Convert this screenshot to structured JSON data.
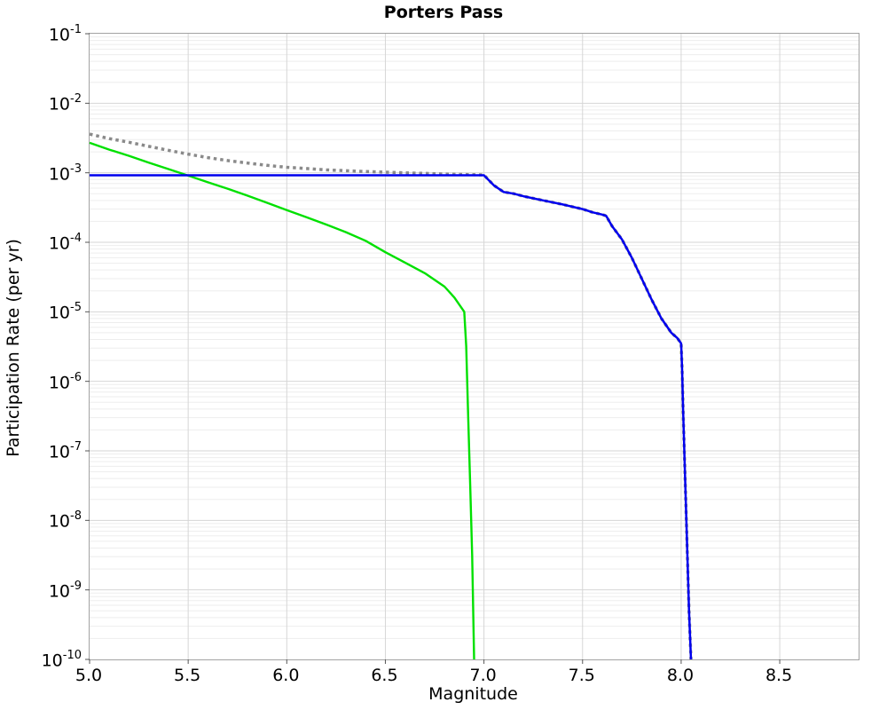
{
  "title": "Porters Pass",
  "axes": {
    "x": {
      "label": "Magnitude",
      "ticks": [
        {
          "v": 5.0,
          "label": "5.0"
        },
        {
          "v": 5.5,
          "label": "5.5"
        },
        {
          "v": 6.0,
          "label": "6.0"
        },
        {
          "v": 6.5,
          "label": "6.5"
        },
        {
          "v": 7.0,
          "label": "7.0"
        },
        {
          "v": 7.5,
          "label": "7.5"
        },
        {
          "v": 8.0,
          "label": "8.0"
        },
        {
          "v": 8.5,
          "label": "8.5"
        }
      ]
    },
    "y": {
      "label": "Participation Rate (per yr)",
      "tick_exponents": [
        -1,
        -2,
        -3,
        -4,
        -5,
        -6,
        -7,
        -8,
        -9,
        -10
      ]
    }
  },
  "colors": {
    "major_grid": "#d6d6d6",
    "minor_grid": "#ededed",
    "axis_border": "#a3a3a3",
    "tick_mark": "#555555",
    "series_gray": "#8a8a8a",
    "series_green": "#00e000",
    "series_blue": "#0000ee"
  },
  "chart_data": {
    "type": "line",
    "title": "Porters Pass",
    "xlabel": "Magnitude",
    "ylabel": "Participation Rate (per yr)",
    "xlim": [
      5.0,
      8.9
    ],
    "ylim": [
      1e-10,
      0.1
    ],
    "yscale": "log",
    "grid": true,
    "legend": "none",
    "series": [
      {
        "name": "gray-dotted-total",
        "color": "#8a8a8a",
        "width": 3.5,
        "dash": "3.5 4",
        "points": [
          [
            5.0,
            0.0036
          ],
          [
            5.1,
            0.0031
          ],
          [
            5.2,
            0.00275
          ],
          [
            5.3,
            0.0024
          ],
          [
            5.4,
            0.0021
          ],
          [
            5.5,
            0.00185
          ],
          [
            5.6,
            0.00165
          ],
          [
            5.7,
            0.0015
          ],
          [
            5.8,
            0.00138
          ],
          [
            5.9,
            0.00128
          ],
          [
            6.0,
            0.0012
          ],
          [
            6.1,
            0.00115
          ],
          [
            6.2,
            0.0011
          ],
          [
            6.4,
            0.00104
          ],
          [
            6.6,
            0.001
          ],
          [
            6.8,
            0.00096
          ],
          [
            7.0,
            0.00093
          ],
          [
            7.05,
            0.00066
          ],
          [
            7.1,
            0.00053
          ],
          [
            7.15,
            0.0005
          ],
          [
            7.2,
            0.00046
          ],
          [
            7.3,
            0.0004
          ],
          [
            7.4,
            0.00035
          ],
          [
            7.5,
            0.0003
          ],
          [
            7.55,
            0.00027
          ],
          [
            7.6,
            0.00025
          ],
          [
            7.62,
            0.00024
          ],
          [
            7.65,
            0.00017
          ],
          [
            7.7,
            0.00011
          ],
          [
            7.75,
            6e-05
          ],
          [
            7.8,
            3e-05
          ],
          [
            7.85,
            1.5e-05
          ],
          [
            7.9,
            8e-06
          ],
          [
            7.95,
            5e-06
          ],
          [
            7.98,
            4.2e-06
          ],
          [
            8.0,
            3.5e-06
          ],
          [
            8.005,
            1.5e-06
          ],
          [
            8.01,
            4e-07
          ],
          [
            8.02,
            4e-08
          ],
          [
            8.03,
            4.5e-09
          ],
          [
            8.04,
            5e-10
          ],
          [
            8.05,
            1e-10
          ]
        ]
      },
      {
        "name": "green-solid-gr",
        "color": "#00e000",
        "width": 2.4,
        "dash": "",
        "points": [
          [
            5.0,
            0.0027
          ],
          [
            5.1,
            0.00215
          ],
          [
            5.2,
            0.00175
          ],
          [
            5.3,
            0.0014
          ],
          [
            5.4,
            0.00113
          ],
          [
            5.5,
            0.00091
          ],
          [
            5.6,
            0.00073
          ],
          [
            5.7,
            0.00059
          ],
          [
            5.8,
            0.00047
          ],
          [
            5.9,
            0.00037
          ],
          [
            6.0,
            0.00029
          ],
          [
            6.1,
            0.00023
          ],
          [
            6.2,
            0.00018
          ],
          [
            6.3,
            0.00014
          ],
          [
            6.4,
            0.000105
          ],
          [
            6.5,
            7.2e-05
          ],
          [
            6.6,
            5.1e-05
          ],
          [
            6.7,
            3.6e-05
          ],
          [
            6.8,
            2.3e-05
          ],
          [
            6.85,
            1.6e-05
          ],
          [
            6.9,
            1e-05
          ],
          [
            6.91,
            3.2e-06
          ],
          [
            6.92,
            3.2e-07
          ],
          [
            6.93,
            3.2e-08
          ],
          [
            6.94,
            3.2e-09
          ],
          [
            6.95,
            1e-10
          ]
        ]
      },
      {
        "name": "blue-solid-participation",
        "color": "#0000ee",
        "width": 2.5,
        "dash": "",
        "points": [
          [
            5.0,
            0.00092
          ],
          [
            7.0,
            0.00092
          ],
          [
            7.05,
            0.00066
          ],
          [
            7.1,
            0.00053
          ],
          [
            7.15,
            0.0005
          ],
          [
            7.2,
            0.00046
          ],
          [
            7.3,
            0.0004
          ],
          [
            7.4,
            0.00035
          ],
          [
            7.5,
            0.0003
          ],
          [
            7.55,
            0.00027
          ],
          [
            7.6,
            0.00025
          ],
          [
            7.62,
            0.00024
          ],
          [
            7.65,
            0.00017
          ],
          [
            7.7,
            0.00011
          ],
          [
            7.75,
            6e-05
          ],
          [
            7.8,
            3e-05
          ],
          [
            7.85,
            1.5e-05
          ],
          [
            7.9,
            8e-06
          ],
          [
            7.95,
            5e-06
          ],
          [
            7.98,
            4.2e-06
          ],
          [
            8.0,
            3.5e-06
          ],
          [
            8.005,
            1.5e-06
          ],
          [
            8.01,
            4e-07
          ],
          [
            8.02,
            4e-08
          ],
          [
            8.03,
            4.5e-09
          ],
          [
            8.04,
            5e-10
          ],
          [
            8.05,
            1e-10
          ]
        ]
      }
    ]
  }
}
